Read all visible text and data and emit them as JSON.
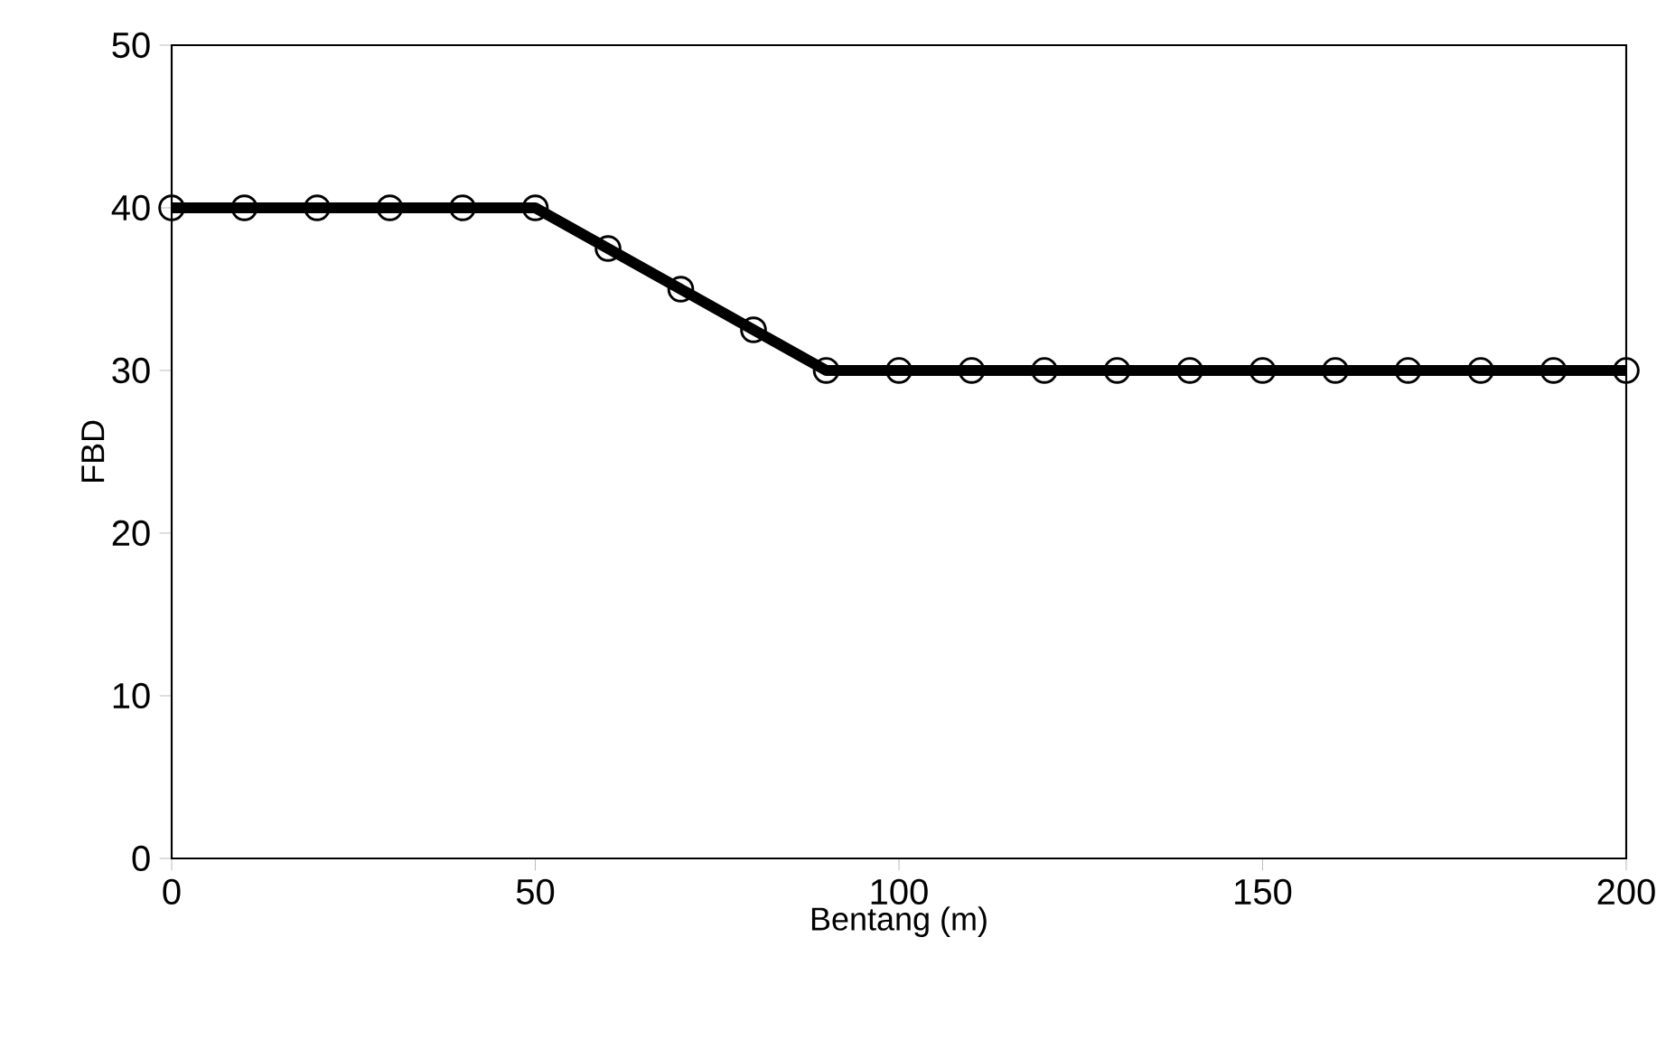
{
  "chart_data": {
    "type": "line",
    "xlabel": "Bentang (m)",
    "ylabel": "FBD",
    "x": [
      0,
      10,
      20,
      30,
      40,
      50,
      60,
      70,
      80,
      90,
      100,
      110,
      120,
      130,
      140,
      150,
      160,
      170,
      180,
      190,
      200
    ],
    "series": [
      {
        "color": "#000000",
        "values": [
          40,
          40,
          40,
          40,
          40,
          40,
          37.5,
          35,
          32.5,
          30,
          30,
          30,
          30,
          30,
          30,
          30,
          30,
          30,
          30,
          30,
          30
        ]
      }
    ],
    "xlim": [
      0,
      200
    ],
    "xticks": [
      0,
      50,
      100,
      150,
      200
    ],
    "ylim": [
      0,
      50
    ],
    "yticks": [
      0,
      10,
      20,
      30,
      40,
      50
    ],
    "marker": "circle",
    "line_style": "solid"
  }
}
